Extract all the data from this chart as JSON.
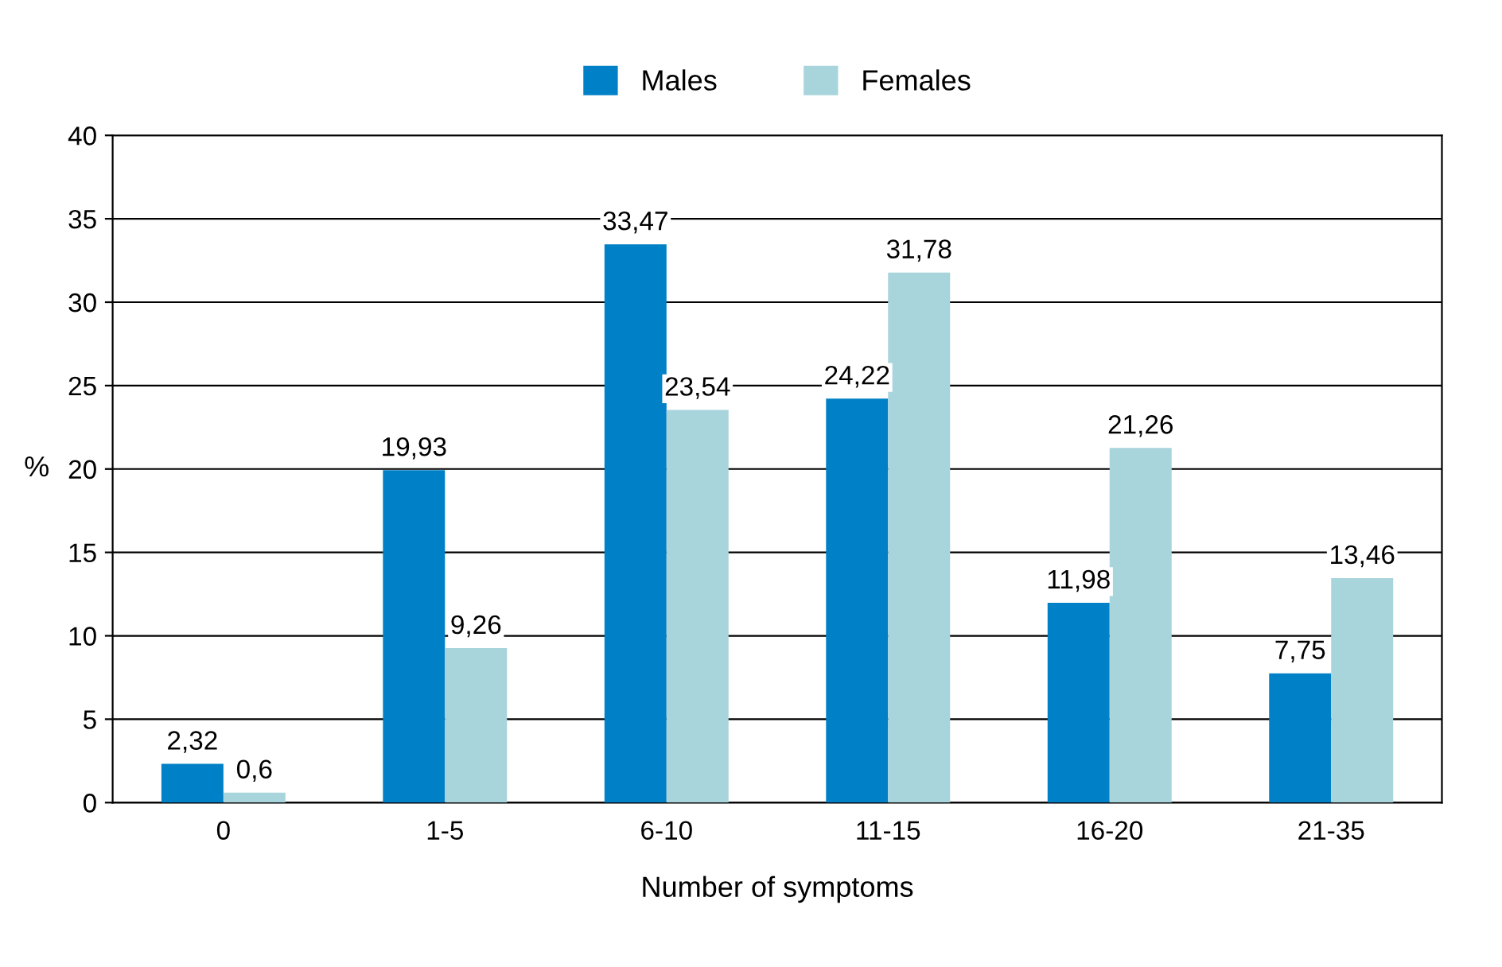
{
  "chart_data": {
    "type": "bar",
    "xlabel": "Number of symptoms",
    "ylabel": "%",
    "categories": [
      "0",
      "1-5",
      "6-10",
      "11-15",
      "16-20",
      "21-35"
    ],
    "series": [
      {
        "name": "Males",
        "color": "#0080c6",
        "values": [
          2.32,
          19.93,
          33.47,
          24.22,
          11.98,
          7.75
        ],
        "value_labels": [
          "2,32",
          "19,93",
          "33,47",
          "24,22",
          "11,98",
          "7,75"
        ]
      },
      {
        "name": "Females",
        "color": "#a8d4dc",
        "values": [
          0.6,
          9.26,
          23.54,
          31.78,
          21.26,
          13.46
        ],
        "value_labels": [
          "0,6",
          "9,26",
          "23,54",
          "31,78",
          "21,26",
          "13,46"
        ]
      }
    ],
    "ylim": [
      0,
      40
    ],
    "yticks": [
      0,
      5,
      10,
      15,
      20,
      25,
      30,
      35,
      40
    ],
    "grid": "y",
    "legend": "top"
  }
}
